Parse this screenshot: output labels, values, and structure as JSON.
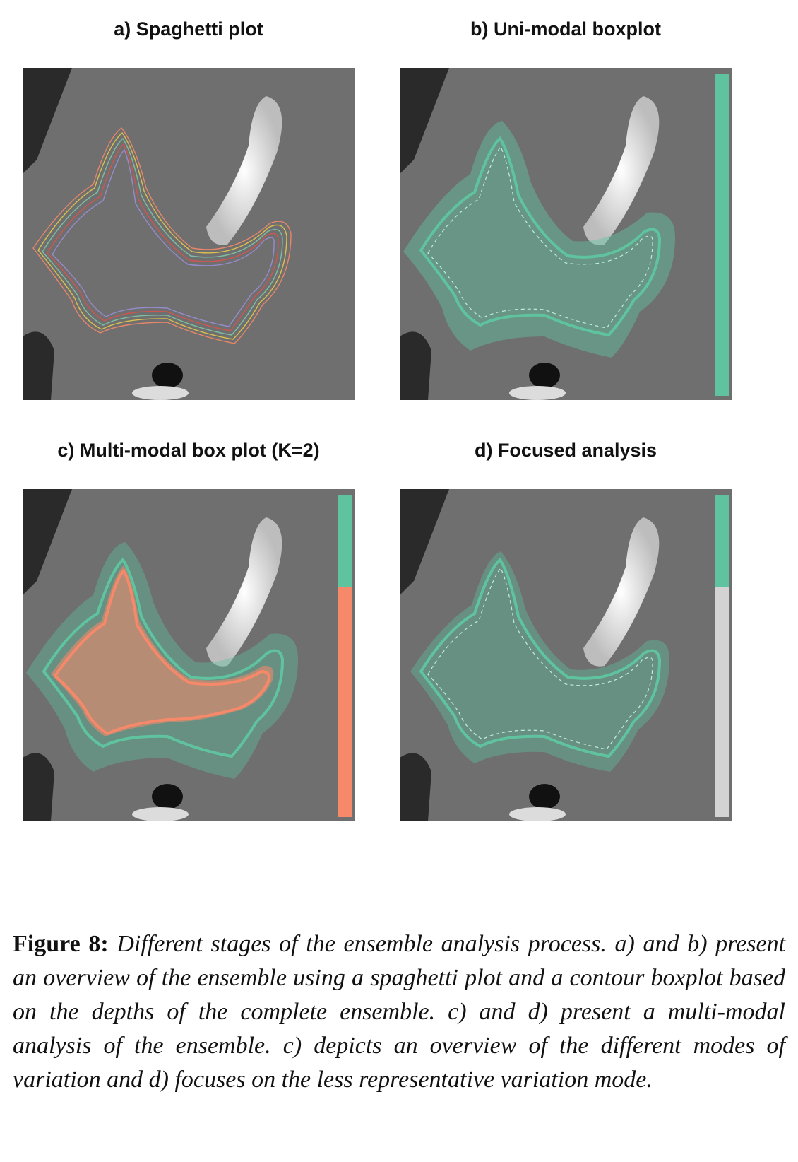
{
  "panels": [
    {
      "title": "a) Spaghetti plot"
    },
    {
      "title": "b) Uni-modal boxplot"
    },
    {
      "title": "c) Multi-modal box plot (K=2)"
    },
    {
      "title": "d) Focused analysis"
    }
  ],
  "caption": {
    "label": "Figure 8:",
    "text": "Different stages of the ensemble analysis process. a) and b) present an overview of the ensemble using a spaghetti plot and a contour boxplot based on the depths of the complete ensemble. c) and d) present a multi-modal analysis of the ensemble. c) depicts an overview of the different modes of variation and d) focuses on the less representative variation mode."
  },
  "colors": {
    "teal": "#5fc3a0",
    "orange": "#f5896a",
    "gray_bar": "#d3d3d3",
    "background": "#6f6f6f"
  },
  "mode_bars": {
    "b": [
      {
        "color": "teal",
        "fraction": 1.0
      }
    ],
    "c": [
      {
        "color": "teal",
        "fraction": 0.28
      },
      {
        "color": "orange",
        "fraction": 0.72
      }
    ],
    "d": [
      {
        "color": "teal",
        "fraction": 0.28
      },
      {
        "color": "gray_bar",
        "fraction": 0.72
      }
    ]
  }
}
